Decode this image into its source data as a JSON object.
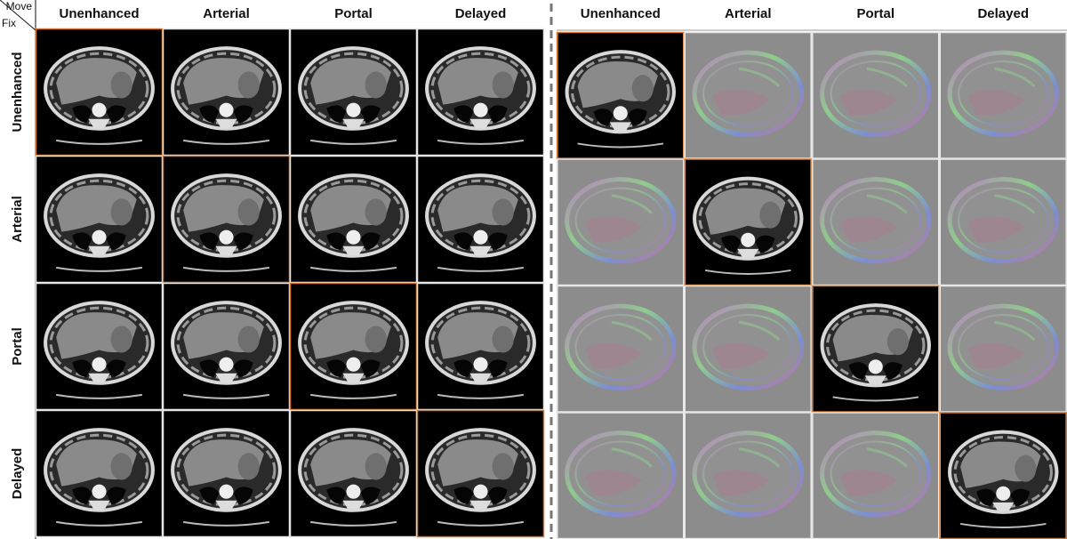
{
  "corner": {
    "move": "Move",
    "fix": "Fix"
  },
  "left": {
    "columns": [
      "Unenhanced",
      "Arterial",
      "Portal",
      "Delayed"
    ]
  },
  "right": {
    "columns": [
      "Unenhanced",
      "Arterial",
      "Portal",
      "Delayed"
    ]
  },
  "rows": [
    "Unenhanced",
    "Arterial",
    "Portal",
    "Delayed"
  ]
}
